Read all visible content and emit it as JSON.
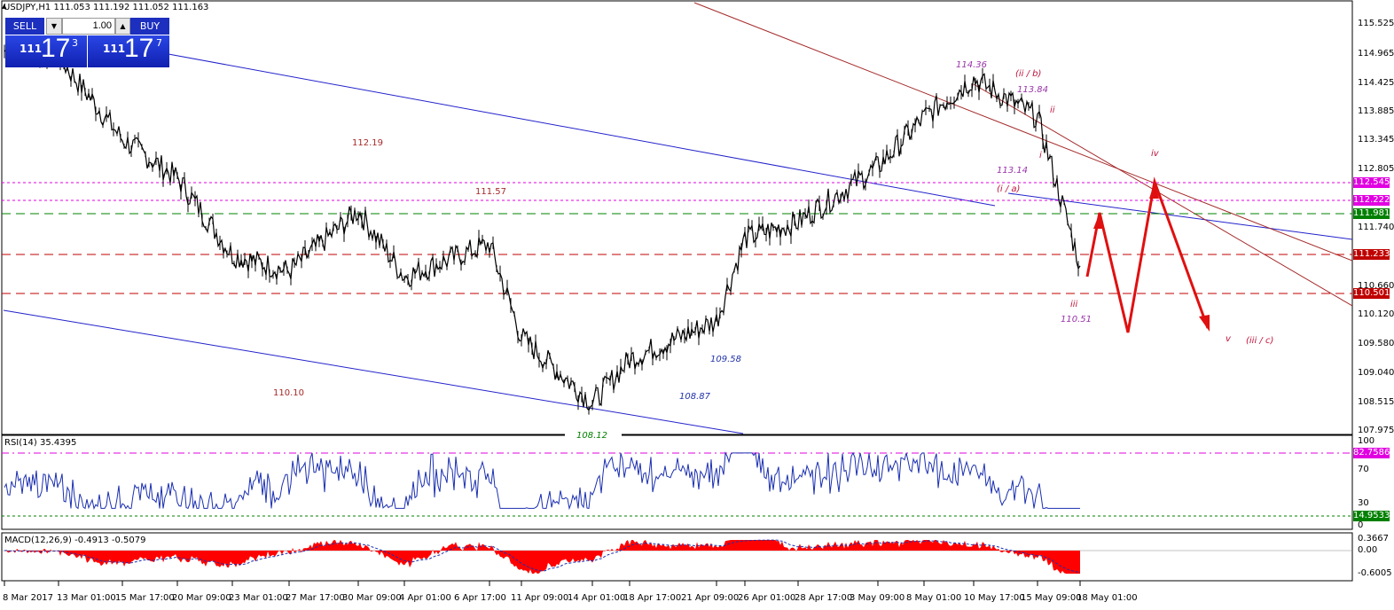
{
  "header": {
    "title": "USDJPY,H1  111.053 111.192 111.052 111.163"
  },
  "trade": {
    "sell_label": "SELL",
    "buy_label": "BUY",
    "lot": "1.00",
    "sell_price": {
      "big": "111",
      "huge": "17",
      "sup": "3"
    },
    "buy_price": {
      "big": "111",
      "huge": "17",
      "sup": "7"
    }
  },
  "price_axis": [
    "115.525",
    "114.965",
    "114.425",
    "113.885",
    "113.345",
    "112.805",
    "111.740",
    "110.660",
    "110.120",
    "109.580",
    "109.040",
    "108.515",
    "107.975"
  ],
  "price_tags": [
    {
      "text": "112.545",
      "color": "#e100e1"
    },
    {
      "text": "112.222",
      "color": "#e100e1"
    },
    {
      "text": "111.981",
      "color": "#008000"
    },
    {
      "text": "111.233",
      "color": "#c00000"
    },
    {
      "text": "110.501",
      "color": "#c00000"
    }
  ],
  "annotations": [
    {
      "text": "114.36",
      "color": "#9933aa"
    },
    {
      "text": "(ii / b)",
      "color": "#c0143c"
    },
    {
      "text": "113.84",
      "color": "#9933aa"
    },
    {
      "text": "ii",
      "color": "#c0143c"
    },
    {
      "text": "i",
      "color": "#c0143c"
    },
    {
      "text": "113.14",
      "color": "#9933aa"
    },
    {
      "text": "(i / a)",
      "color": "#c0143c"
    },
    {
      "text": "iv",
      "color": "#c0143c"
    },
    {
      "text": "iii",
      "color": "#c0143c"
    },
    {
      "text": "110.51",
      "color": "#9933aa"
    },
    {
      "text": "v",
      "color": "#c0143c"
    },
    {
      "text": "(iii / c)",
      "color": "#c0143c"
    },
    {
      "text": "112.19",
      "color": "#a52a2a"
    },
    {
      "text": "111.57",
      "color": "#a52a2a"
    },
    {
      "text": "110.10",
      "color": "#a52a2a"
    },
    {
      "text": "109.58",
      "color": "#2233aa"
    },
    {
      "text": "108.87",
      "color": "#2233aa"
    },
    {
      "text": "108.12",
      "color": "#008000"
    }
  ],
  "rsi": {
    "title": "RSI(14) 35.4395",
    "axis": [
      "100",
      "70",
      "30",
      "0"
    ],
    "tags": [
      {
        "text": "82.7586",
        "color": "#e100e1"
      },
      {
        "text": "14.9533",
        "color": "#008000"
      }
    ]
  },
  "macd": {
    "title": "MACD(12,26,9) -0.4913 -0.5079",
    "axis": [
      "0.3667",
      "0.00",
      "-0.6005"
    ]
  },
  "time_axis": [
    "8 Mar 2017",
    "13 Mar 01:00",
    "15 Mar 17:00",
    "20 Mar 09:00",
    "23 Mar 01:00",
    "27 Mar 17:00",
    "30 Mar 09:00",
    "4 Apr 01:00",
    "6 Apr 17:00",
    "11 Apr 09:00",
    "14 Apr 01:00",
    "18 Apr 17:00",
    "21 Apr 09:00",
    "26 Apr 01:00",
    "28 Apr 17:00",
    "3 May 09:00",
    "8 May 01:00",
    "10 May 17:00",
    "15 May 09:00",
    "18 May 01:00"
  ],
  "colors": {
    "candles": "#000000",
    "channel_blue": "#2222cc",
    "channel_red": "#a52a2a",
    "arrows": "#e01010",
    "rsi_line": "#1a2fb0",
    "macd_hist": "#ff0000"
  },
  "chart_data": {
    "type": "line",
    "symbol": "USDJPY",
    "timeframe": "H1",
    "ylim": [
      107.85,
      115.7
    ],
    "series": [
      {
        "name": "USDJPY",
        "x": [
          "8 Mar 2017",
          "13 Mar 01:00",
          "15 Mar 17:00",
          "20 Mar 09:00",
          "23 Mar 01:00",
          "27 Mar 17:00",
          "30 Mar 09:00",
          "4 Apr 01:00",
          "6 Apr 17:00",
          "11 Apr 09:00",
          "14 Apr 01:00",
          "18 Apr 17:00",
          "21 Apr 09:00",
          "26 Apr 01:00",
          "28 Apr 17:00",
          "3 May 09:00",
          "8 May 01:00",
          "10 May 17:00",
          "15 May 09:00",
          "18 May 01:00"
        ],
        "values": [
          114.8,
          114.7,
          113.2,
          112.5,
          111.1,
          110.8,
          111.9,
          110.7,
          111.3,
          109.6,
          108.4,
          109.2,
          109.9,
          111.4,
          111.7,
          112.7,
          113.6,
          114.3,
          113.6,
          110.9
        ]
      }
    ],
    "horizontal_levels": [
      112.545,
      112.222,
      111.981,
      111.233,
      110.501
    ]
  }
}
